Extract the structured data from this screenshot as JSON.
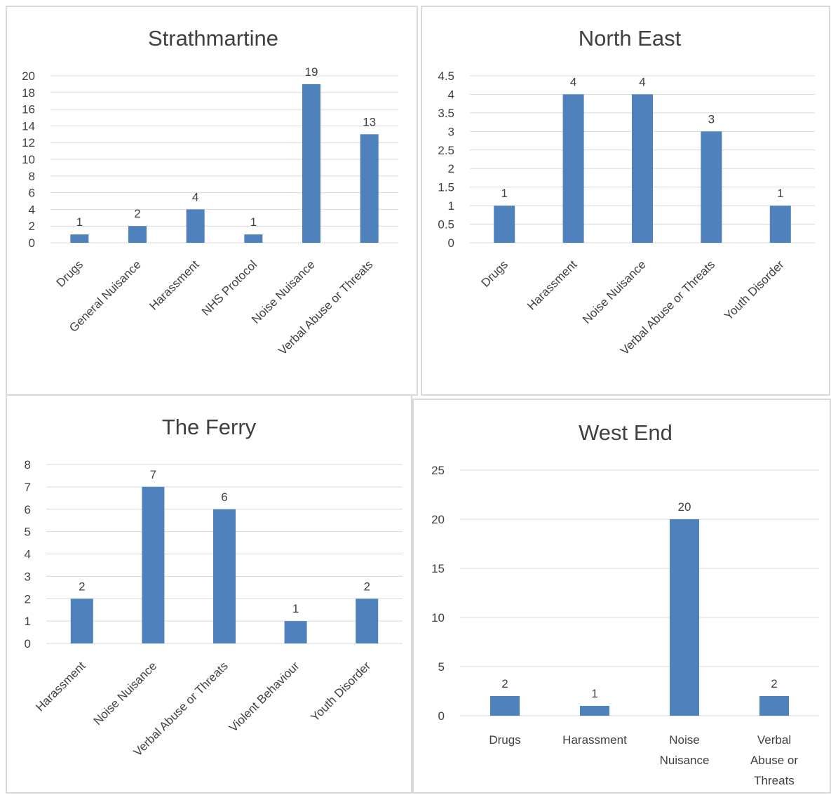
{
  "chart_data": [
    {
      "type": "bar",
      "title": "Strathmartine",
      "categories": [
        "Drugs",
        "General Nuisance",
        "Harassment",
        "NHS Protocol",
        "Noise Nuisance",
        "Verbal Abuse or Threats"
      ],
      "values": [
        1,
        2,
        4,
        1,
        19,
        13
      ],
      "ylim": [
        0,
        20
      ],
      "yticks": [
        "0",
        "2",
        "4",
        "6",
        "8",
        "10",
        "12",
        "14",
        "16",
        "18",
        "20"
      ],
      "grid": true,
      "color": "#4f81bd"
    },
    {
      "type": "bar",
      "title": "North East",
      "categories": [
        "Drugs",
        "Harassment",
        "Noise Nuisance",
        "Verbal Abuse or Threats",
        "Youth Disorder"
      ],
      "values": [
        1,
        4,
        4,
        3,
        1
      ],
      "ylim": [
        0,
        4.5
      ],
      "yticks": [
        "0",
        "0.5",
        "1",
        "1.5",
        "2",
        "2.5",
        "3",
        "3.5",
        "4",
        "4.5"
      ],
      "grid": true,
      "color": "#4f81bd"
    },
    {
      "type": "bar",
      "title": "The Ferry",
      "categories": [
        "Harassment",
        "Noise Nuisance",
        "Verbal Abuse or Threats",
        "Violent Behaviour",
        "Youth Disorder"
      ],
      "values": [
        2,
        7,
        6,
        1,
        2
      ],
      "ylim": [
        0,
        8
      ],
      "yticks": [
        "0",
        "1",
        "2",
        "3",
        "4",
        "5",
        "6",
        "7",
        "8"
      ],
      "grid": true,
      "color": "#4f81bd"
    },
    {
      "type": "bar",
      "title": "West End",
      "categories": [
        "Drugs",
        "Harassment",
        "Noise Nuisance",
        "Verbal Abuse or Threats"
      ],
      "category_lines": [
        [
          "Drugs"
        ],
        [
          "Harassment"
        ],
        [
          "Noise",
          "Nuisance"
        ],
        [
          "Verbal",
          "Abuse or",
          "Threats"
        ]
      ],
      "values": [
        2,
        1,
        20,
        2
      ],
      "ylim": [
        0,
        25
      ],
      "yticks": [
        "0",
        "5",
        "10",
        "15",
        "20",
        "25"
      ],
      "grid": true,
      "color": "#4f81bd"
    }
  ]
}
